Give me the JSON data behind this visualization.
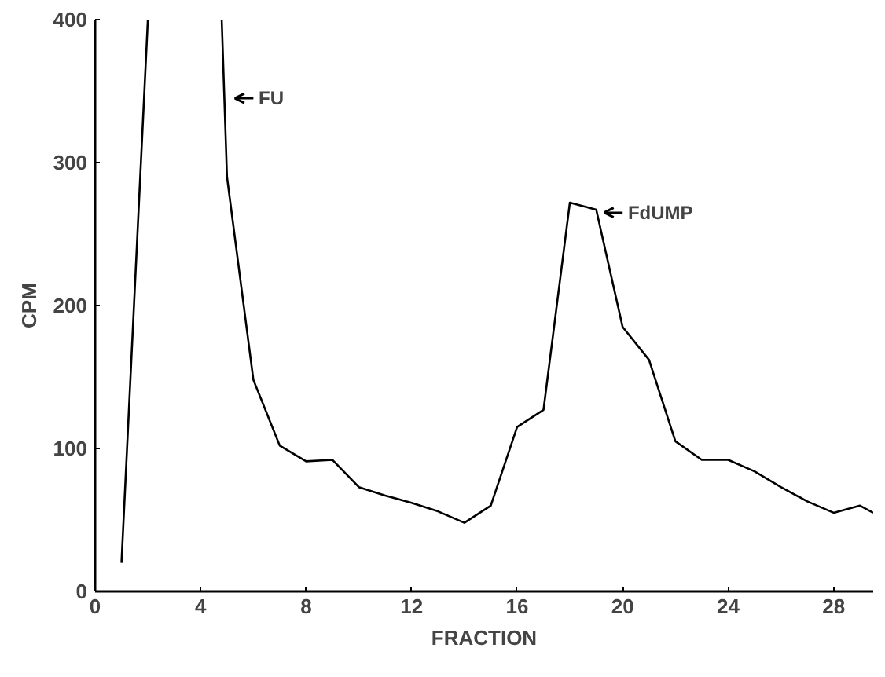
{
  "chart_data": {
    "type": "line",
    "xlabel": "FRACTION",
    "ylabel": "CPM",
    "series": [
      {
        "color": "#000000",
        "x": [
          1,
          2,
          3,
          4.8,
          5,
          6,
          7,
          8,
          9,
          10,
          11,
          12,
          13,
          14,
          15,
          16,
          17,
          18,
          19,
          20,
          21,
          22,
          23,
          24,
          25,
          26,
          27,
          28,
          29,
          29.5
        ],
        "values": [
          20,
          400,
          null,
          400,
          290,
          148,
          102,
          91,
          92,
          73,
          67,
          62,
          56,
          48,
          60,
          115,
          127,
          272,
          267,
          185,
          162,
          105,
          92,
          92,
          84,
          73,
          63,
          55,
          60,
          55
        ]
      }
    ],
    "xlim": [
      0,
      29.5
    ],
    "xticks": [
      0,
      4,
      8,
      12,
      16,
      20,
      24,
      28
    ],
    "ylim": [
      0,
      400
    ],
    "yticks": [
      0,
      100,
      200,
      300,
      400
    ],
    "grid": false,
    "marker": "none",
    "line_style": "solid",
    "annotations": [
      {
        "text": "FU",
        "x": 5,
        "y": 345
      },
      {
        "text": "FdUMP",
        "x": 19,
        "y": 265
      }
    ]
  }
}
